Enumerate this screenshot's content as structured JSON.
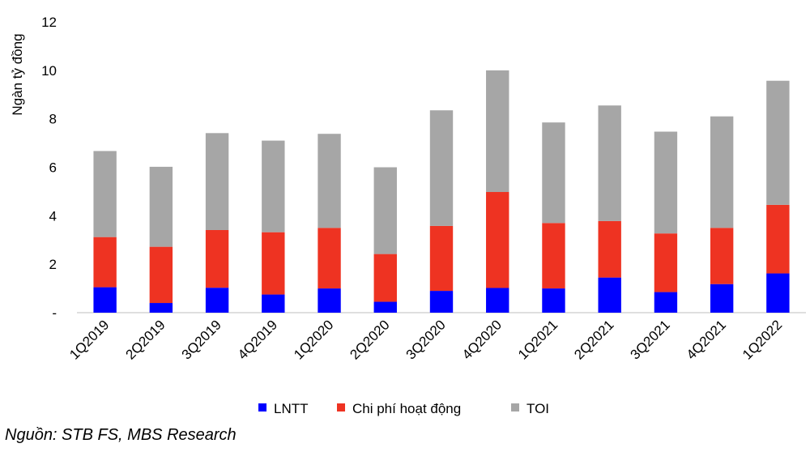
{
  "chart_data": {
    "type": "bar",
    "stacked": true,
    "title": "",
    "xlabel": "",
    "ylabel": "Ngàn tỷ đồng",
    "ylim": [
      0,
      12
    ],
    "yticks": [
      "-",
      "2",
      "4",
      "6",
      "8",
      "10",
      "12"
    ],
    "grid": false,
    "legend_position": "bottom",
    "categories": [
      "1Q2019",
      "2Q2019",
      "3Q2019",
      "4Q2019",
      "1Q2020",
      "2Q2020",
      "3Q2020",
      "4Q2020",
      "1Q2021",
      "2Q2021",
      "3Q2021",
      "4Q2021",
      "1Q2022"
    ],
    "series": [
      {
        "name": "LNTT",
        "color": "#0000ff",
        "values": [
          1.05,
          0.4,
          1.03,
          0.75,
          1.0,
          0.45,
          0.9,
          1.02,
          1.0,
          1.45,
          0.85,
          1.18,
          1.62
        ]
      },
      {
        "name": "Chi phí hoạt động",
        "color": "#ee3322",
        "values": [
          2.07,
          2.32,
          2.38,
          2.57,
          2.5,
          1.97,
          2.68,
          3.96,
          2.7,
          2.33,
          2.42,
          2.32,
          2.83
        ]
      },
      {
        "name": "TOI",
        "color": "#a6a6a6",
        "values": [
          3.55,
          3.3,
          4.0,
          3.78,
          3.88,
          3.58,
          4.77,
          5.02,
          4.15,
          4.77,
          4.2,
          4.6,
          5.12
        ]
      }
    ]
  },
  "source": "Nguồn: STB FS, MBS Research"
}
